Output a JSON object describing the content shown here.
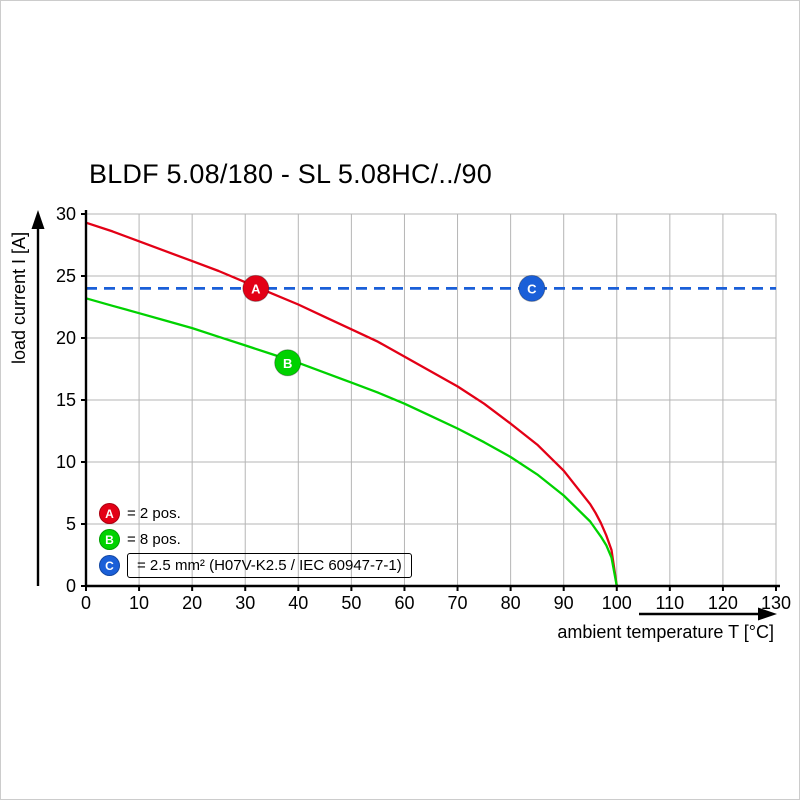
{
  "chart_data": {
    "type": "line",
    "title": "BLDF 5.08/180 - SL 5.08HC/../90",
    "xlabel": "ambient temperature T [°C]",
    "ylabel": "load current I [A]",
    "xlim": [
      0,
      130
    ],
    "ylim": [
      0,
      30
    ],
    "xticks": [
      0,
      10,
      20,
      30,
      40,
      50,
      60,
      70,
      80,
      90,
      100,
      110,
      120,
      130
    ],
    "yticks": [
      0,
      5,
      10,
      15,
      20,
      25,
      30
    ],
    "grid": true,
    "grid_color": "#b5b5b5",
    "axis_color": "#000000",
    "series": [
      {
        "name": "A",
        "color": "#e30016",
        "style": "solid",
        "x": [
          0,
          5,
          10,
          15,
          20,
          25,
          30,
          35,
          40,
          45,
          50,
          55,
          60,
          65,
          70,
          75,
          80,
          85,
          90,
          95,
          96,
          97,
          98,
          99,
          100
        ],
        "y": [
          29.3,
          28.6,
          27.8,
          27.0,
          26.2,
          25.4,
          24.5,
          23.6,
          22.7,
          21.7,
          20.7,
          19.7,
          18.5,
          17.3,
          16.1,
          14.7,
          13.1,
          11.4,
          9.3,
          6.6,
          5.9,
          5.1,
          4.1,
          2.9,
          0
        ]
      },
      {
        "name": "B",
        "color": "#00d200",
        "style": "solid",
        "x": [
          0,
          5,
          10,
          15,
          20,
          25,
          30,
          35,
          40,
          45,
          50,
          55,
          60,
          65,
          70,
          75,
          80,
          85,
          90,
          95,
          96,
          97,
          98,
          99,
          100
        ],
        "y": [
          23.2,
          22.6,
          22.0,
          21.4,
          20.8,
          20.1,
          19.4,
          18.7,
          18.0,
          17.2,
          16.4,
          15.6,
          14.7,
          13.7,
          12.7,
          11.6,
          10.4,
          9.0,
          7.3,
          5.2,
          4.6,
          4.0,
          3.3,
          2.3,
          0
        ]
      },
      {
        "name": "C",
        "color": "#1a5fd8",
        "style": "dashed",
        "x": [
          0,
          130
        ],
        "y": [
          24,
          24
        ]
      }
    ],
    "markers": [
      {
        "label": "A",
        "x": 32,
        "y": 24,
        "color": "#e30016"
      },
      {
        "label": "B",
        "x": 38,
        "y": 18,
        "color": "#00d200"
      },
      {
        "label": "C",
        "x": 84,
        "y": 24,
        "color": "#1a5fd8"
      }
    ],
    "legend": [
      {
        "symbol": "A",
        "color": "#e30016",
        "text": "= 2 pos.",
        "boxed": false
      },
      {
        "symbol": "B",
        "color": "#00d200",
        "text": "= 8 pos.",
        "boxed": false
      },
      {
        "symbol": "C",
        "color": "#1a5fd8",
        "text": "= 2.5 mm² (H07V-K2.5 / IEC 60947-7-1)",
        "boxed": true
      }
    ],
    "legend_position": "lower-left"
  }
}
